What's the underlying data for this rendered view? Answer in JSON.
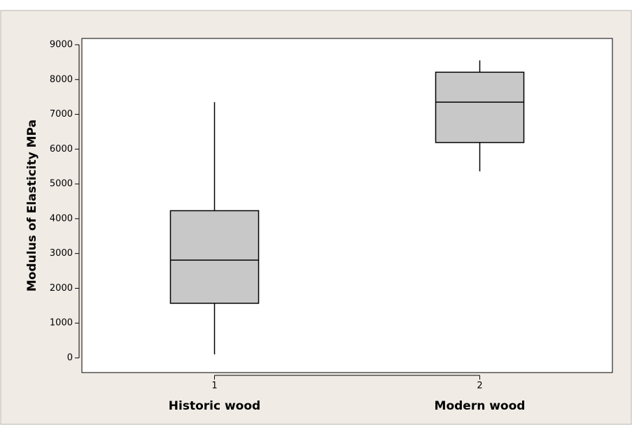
{
  "chart_data": {
    "type": "box",
    "y_label": "Modulus of Elasticity MPa",
    "categories": [
      "Historic wood",
      "Modern wood"
    ],
    "x": [
      1,
      2
    ],
    "xlim": [
      0.5,
      2.5
    ],
    "xticks": [
      1,
      2
    ],
    "ylim": [
      0,
      9000
    ],
    "yticks": [
      0,
      1000,
      2000,
      3000,
      4000,
      5000,
      6000,
      7000,
      8000,
      9000
    ],
    "min": [
      100,
      5360
    ],
    "q1": [
      1570,
      6190
    ],
    "median": [
      2810,
      7350
    ],
    "q3": [
      4230,
      8210
    ],
    "max": [
      7350,
      8550
    ],
    "color": "#c8c8c8"
  }
}
